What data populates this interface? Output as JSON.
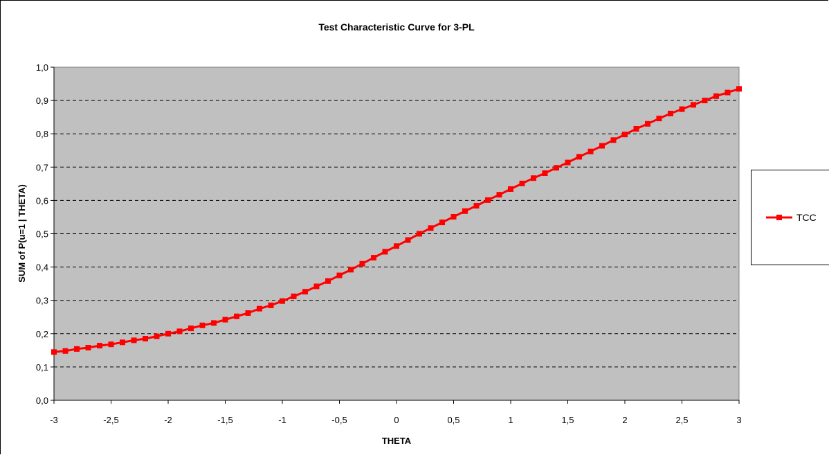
{
  "chart_data": {
    "type": "line",
    "title": "Test Characteristic Curve for 3-PL",
    "xlabel": "THETA",
    "ylabel": "SUM of P(u=1 | THETA)",
    "x_tick_labels": [
      "-3",
      "-2,5",
      "-2",
      "-1,5",
      "-1",
      "-0,5",
      "0",
      "0,5",
      "1",
      "1,5",
      "2",
      "2,5",
      "3"
    ],
    "y_tick_labels": [
      "0,0",
      "0,1",
      "0,2",
      "0,3",
      "0,4",
      "0,5",
      "0,6",
      "0,7",
      "0,8",
      "0,9",
      "1,0"
    ],
    "xlim": [
      -3,
      3
    ],
    "ylim": [
      0,
      1
    ],
    "grid": "horizontal dashed",
    "legend_position": "right",
    "plot_background": "#c0c0c0",
    "series": [
      {
        "name": "TCC",
        "color": "#ff0000",
        "marker": "square",
        "x": [
          -3.0,
          -2.9,
          -2.8,
          -2.7,
          -2.6,
          -2.5,
          -2.4,
          -2.3,
          -2.2,
          -2.1,
          -2.0,
          -1.9,
          -1.8,
          -1.7,
          -1.6,
          -1.5,
          -1.4,
          -1.3,
          -1.2,
          -1.1,
          -1.0,
          -0.9,
          -0.8,
          -0.7,
          -0.6,
          -0.5,
          -0.4,
          -0.3,
          -0.2,
          -0.1,
          0.0,
          0.1,
          0.2,
          0.3,
          0.4,
          0.5,
          0.6,
          0.7,
          0.8,
          0.9,
          1.0,
          1.1,
          1.2,
          1.3,
          1.4,
          1.5,
          1.6,
          1.7,
          1.8,
          1.9,
          2.0,
          2.1,
          2.2,
          2.3,
          2.4,
          2.5,
          2.6,
          2.7,
          2.8,
          2.9,
          3.0
        ],
        "y": [
          0.145,
          0.148,
          0.154,
          0.158,
          0.164,
          0.168,
          0.174,
          0.18,
          0.185,
          0.192,
          0.2,
          0.207,
          0.216,
          0.225,
          0.232,
          0.242,
          0.252,
          0.262,
          0.275,
          0.285,
          0.298,
          0.312,
          0.326,
          0.342,
          0.358,
          0.375,
          0.392,
          0.41,
          0.428,
          0.446,
          0.463,
          0.481,
          0.5,
          0.517,
          0.534,
          0.551,
          0.568,
          0.584,
          0.601,
          0.617,
          0.634,
          0.651,
          0.667,
          0.682,
          0.698,
          0.714,
          0.731,
          0.747,
          0.764,
          0.781,
          0.798,
          0.815,
          0.83,
          0.846,
          0.861,
          0.874,
          0.887,
          0.9,
          0.913,
          0.924,
          0.935
        ]
      }
    ]
  }
}
